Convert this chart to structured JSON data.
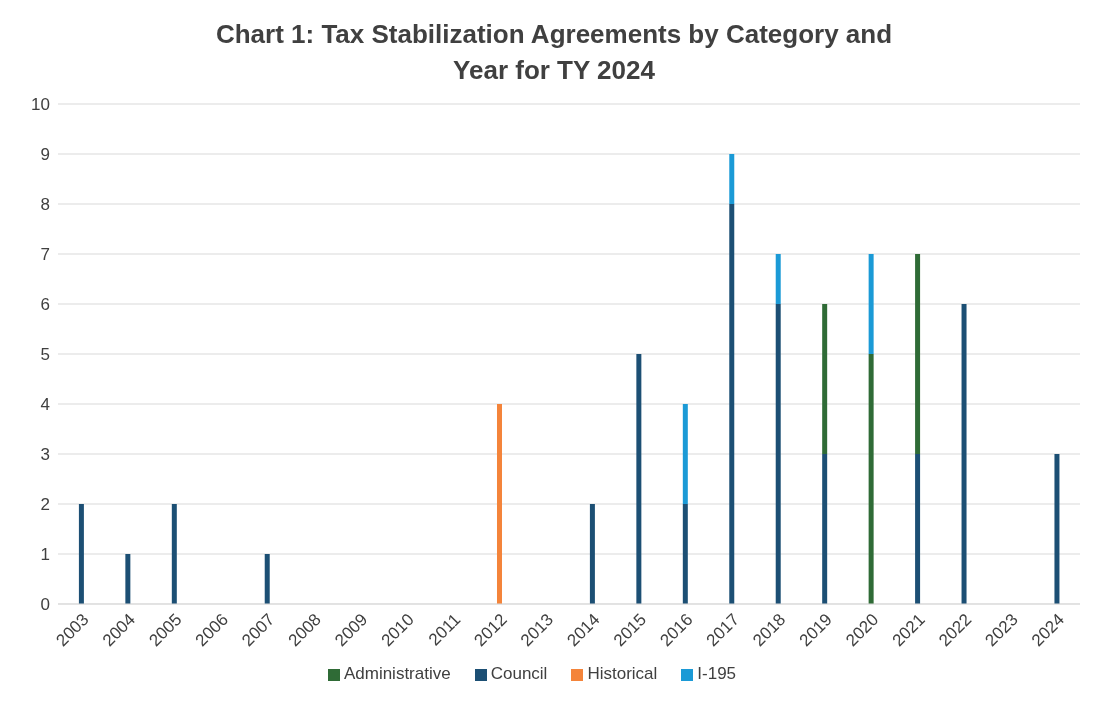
{
  "chart_data": {
    "type": "bar",
    "title": "Chart 1: Tax Stabilization Agreements by Category and Year for TY 2024",
    "stacked": true,
    "categories": [
      "2003",
      "2004",
      "2005",
      "2006",
      "2007",
      "2008",
      "2009",
      "2010",
      "2011",
      "2012",
      "2013",
      "2014",
      "2015",
      "2016",
      "2017",
      "2018",
      "2019",
      "2020",
      "2021",
      "2022",
      "2023",
      "2024"
    ],
    "series": [
      {
        "name": "Council",
        "color": "#1c4f74",
        "values": [
          2,
          1,
          2,
          null,
          1,
          null,
          null,
          null,
          null,
          null,
          null,
          2,
          5,
          2,
          8,
          6,
          3,
          null,
          3,
          6,
          null,
          3
        ]
      },
      {
        "name": "Historical",
        "color": "#f4843a",
        "values": [
          null,
          null,
          null,
          null,
          null,
          null,
          null,
          null,
          null,
          4,
          null,
          null,
          null,
          null,
          null,
          null,
          null,
          null,
          null,
          null,
          null,
          null
        ]
      },
      {
        "name": "Administrative",
        "color": "#2f6b36",
        "values": [
          null,
          null,
          null,
          null,
          null,
          null,
          null,
          null,
          null,
          null,
          null,
          null,
          null,
          null,
          null,
          null,
          3,
          5,
          4,
          null,
          null,
          null
        ]
      },
      {
        "name": "I-195",
        "color": "#1b9ad6",
        "values": [
          null,
          null,
          null,
          null,
          null,
          null,
          null,
          null,
          null,
          null,
          null,
          null,
          null,
          2,
          1,
          1,
          null,
          2,
          null,
          null,
          null,
          null
        ]
      }
    ],
    "ylim": [
      0,
      10
    ],
    "yticks": [
      0,
      1,
      2,
      3,
      4,
      5,
      6,
      7,
      8,
      9,
      10
    ],
    "grid": "y",
    "legend": "bottom"
  }
}
